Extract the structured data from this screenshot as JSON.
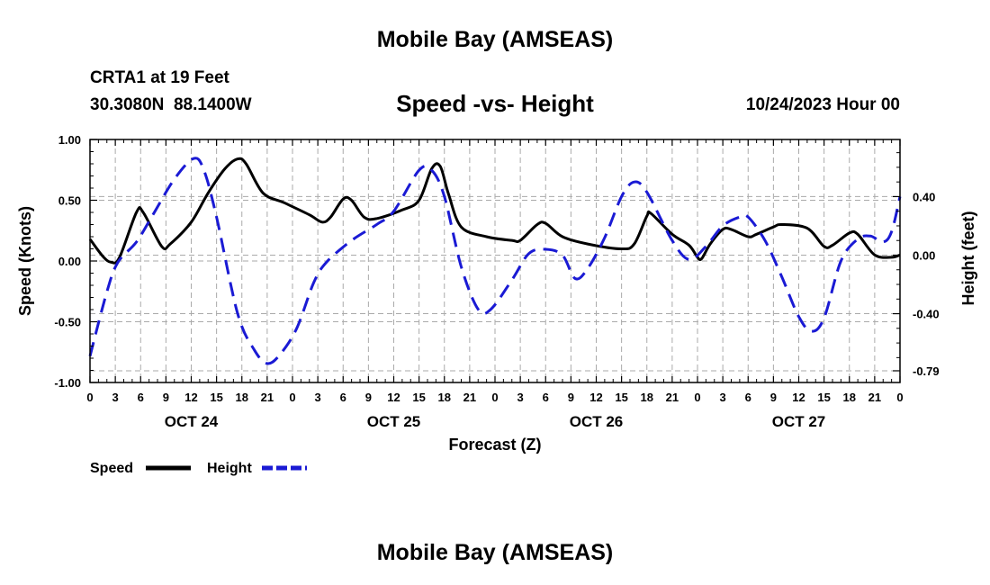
{
  "header": {
    "title": "Mobile Bay (AMSEAS)",
    "station": "CRTA1 at 19 Feet",
    "coords": "30.3080N  88.1400W",
    "subtitle": "Speed -vs- Height",
    "datetime": "10/24/2023 Hour 00"
  },
  "footer": {
    "title": "Mobile Bay (AMSEAS)"
  },
  "colors": {
    "speed": "#000000",
    "height": "#1a1ad4",
    "grid": "#aaaaaa"
  },
  "chart_data": {
    "type": "line",
    "title": "Speed -vs- Height",
    "xlabel": "Forecast (Z)",
    "ylabel": "Speed (Knots)",
    "y2label": "Height (feet)",
    "x_hour_ticks": [
      "0",
      "3",
      "6",
      "9",
      "12",
      "15",
      "18",
      "21",
      "0",
      "3",
      "6",
      "9",
      "12",
      "15",
      "18",
      "21",
      "0",
      "3",
      "6",
      "9",
      "12",
      "15",
      "18",
      "21",
      "0",
      "3",
      "6",
      "9",
      "12",
      "15",
      "18",
      "21",
      "0"
    ],
    "day_labels": [
      {
        "label": "OCT 24",
        "hour": 12
      },
      {
        "label": "OCT 25",
        "hour": 36
      },
      {
        "label": "OCT 26",
        "hour": 60
      },
      {
        "label": "OCT 27",
        "hour": 84
      }
    ],
    "xlim": [
      0,
      96
    ],
    "ylim": [
      -1.0,
      1.0
    ],
    "y_ticks": [
      "1.00",
      "0.50",
      "0.00",
      "-0.50",
      "-1.00"
    ],
    "y_tick_values": [
      1.0,
      0.5,
      0.0,
      -0.5,
      -1.0
    ],
    "y2lim": [
      -0.87,
      0.79
    ],
    "y2_ticks": [
      "0.40",
      "0.00",
      "-0.40",
      "-0.79"
    ],
    "y2_tick_values": [
      0.4,
      0.0,
      -0.4,
      -0.79
    ],
    "series": [
      {
        "name": "Speed",
        "axis": "left",
        "style": "solid",
        "points": [
          [
            0,
            0.18
          ],
          [
            1.5,
            0.04
          ],
          [
            2.5,
            -0.01
          ],
          [
            3.5,
            0.03
          ],
          [
            5.5,
            0.4
          ],
          [
            6.3,
            0.4
          ],
          [
            8.5,
            0.12
          ],
          [
            9.5,
            0.14
          ],
          [
            12,
            0.32
          ],
          [
            14,
            0.56
          ],
          [
            16,
            0.76
          ],
          [
            17.5,
            0.84
          ],
          [
            18.5,
            0.8
          ],
          [
            20.5,
            0.56
          ],
          [
            23,
            0.48
          ],
          [
            26,
            0.38
          ],
          [
            27.5,
            0.32
          ],
          [
            28.5,
            0.36
          ],
          [
            30,
            0.51
          ],
          [
            31,
            0.5
          ],
          [
            32.5,
            0.36
          ],
          [
            34,
            0.35
          ],
          [
            37,
            0.42
          ],
          [
            39,
            0.5
          ],
          [
            40.5,
            0.76
          ],
          [
            41.5,
            0.78
          ],
          [
            42.5,
            0.55
          ],
          [
            44,
            0.28
          ],
          [
            47,
            0.2
          ],
          [
            50,
            0.17
          ],
          [
            51,
            0.17
          ],
          [
            53,
            0.3
          ],
          [
            54,
            0.31
          ],
          [
            56,
            0.2
          ],
          [
            59,
            0.14
          ],
          [
            63,
            0.1
          ],
          [
            64.5,
            0.14
          ],
          [
            66,
            0.37
          ],
          [
            66.5,
            0.39
          ],
          [
            69,
            0.22
          ],
          [
            71,
            0.13
          ],
          [
            72,
            0.03
          ],
          [
            72.5,
            0.02
          ],
          [
            73.5,
            0.14
          ],
          [
            75,
            0.26
          ],
          [
            76,
            0.26
          ],
          [
            78,
            0.2
          ],
          [
            79,
            0.22
          ],
          [
            81,
            0.28
          ],
          [
            82,
            0.3
          ],
          [
            85,
            0.27
          ],
          [
            87,
            0.12
          ],
          [
            88,
            0.13
          ],
          [
            90,
            0.23
          ],
          [
            91,
            0.22
          ],
          [
            93,
            0.05
          ],
          [
            95,
            0.03
          ],
          [
            96,
            0.05
          ]
        ]
      },
      {
        "name": "Height",
        "axis": "right",
        "style": "dashed",
        "points": [
          [
            0,
            -0.69
          ],
          [
            2,
            -0.25
          ],
          [
            3.3,
            -0.05
          ],
          [
            5.5,
            0.09
          ],
          [
            7.5,
            0.28
          ],
          [
            10,
            0.52
          ],
          [
            12.3,
            0.66
          ],
          [
            13.5,
            0.58
          ],
          [
            15,
            0.26
          ],
          [
            17.5,
            -0.4
          ],
          [
            19.5,
            -0.65
          ],
          [
            21,
            -0.74
          ],
          [
            22.5,
            -0.68
          ],
          [
            24.5,
            -0.5
          ],
          [
            26.5,
            -0.19
          ],
          [
            28,
            -0.05
          ],
          [
            31,
            0.1
          ],
          [
            34,
            0.21
          ],
          [
            36,
            0.3
          ],
          [
            39,
            0.58
          ],
          [
            40.5,
            0.58
          ],
          [
            42,
            0.4
          ],
          [
            44,
            -0.08
          ],
          [
            46,
            -0.37
          ],
          [
            47.5,
            -0.37
          ],
          [
            50,
            -0.17
          ],
          [
            52,
            0.01
          ],
          [
            54,
            0.04
          ],
          [
            56,
            0.0
          ],
          [
            57.5,
            -0.16
          ],
          [
            59,
            -0.09
          ],
          [
            61,
            0.12
          ],
          [
            63,
            0.4
          ],
          [
            64.5,
            0.5
          ],
          [
            66,
            0.43
          ],
          [
            69,
            0.1
          ],
          [
            71,
            -0.03
          ],
          [
            73,
            0.06
          ],
          [
            75,
            0.2
          ],
          [
            77,
            0.26
          ],
          [
            78,
            0.26
          ],
          [
            80,
            0.1
          ],
          [
            82,
            -0.15
          ],
          [
            84,
            -0.42
          ],
          [
            85.5,
            -0.52
          ],
          [
            87,
            -0.43
          ],
          [
            89,
            -0.04
          ],
          [
            91,
            0.11
          ],
          [
            92.5,
            0.13
          ],
          [
            94,
            0.09
          ],
          [
            95,
            0.16
          ],
          [
            96,
            0.4
          ]
        ]
      }
    ],
    "legend": [
      {
        "label": "Speed",
        "style": "solid"
      },
      {
        "label": "Height",
        "style": "dashed"
      }
    ]
  }
}
